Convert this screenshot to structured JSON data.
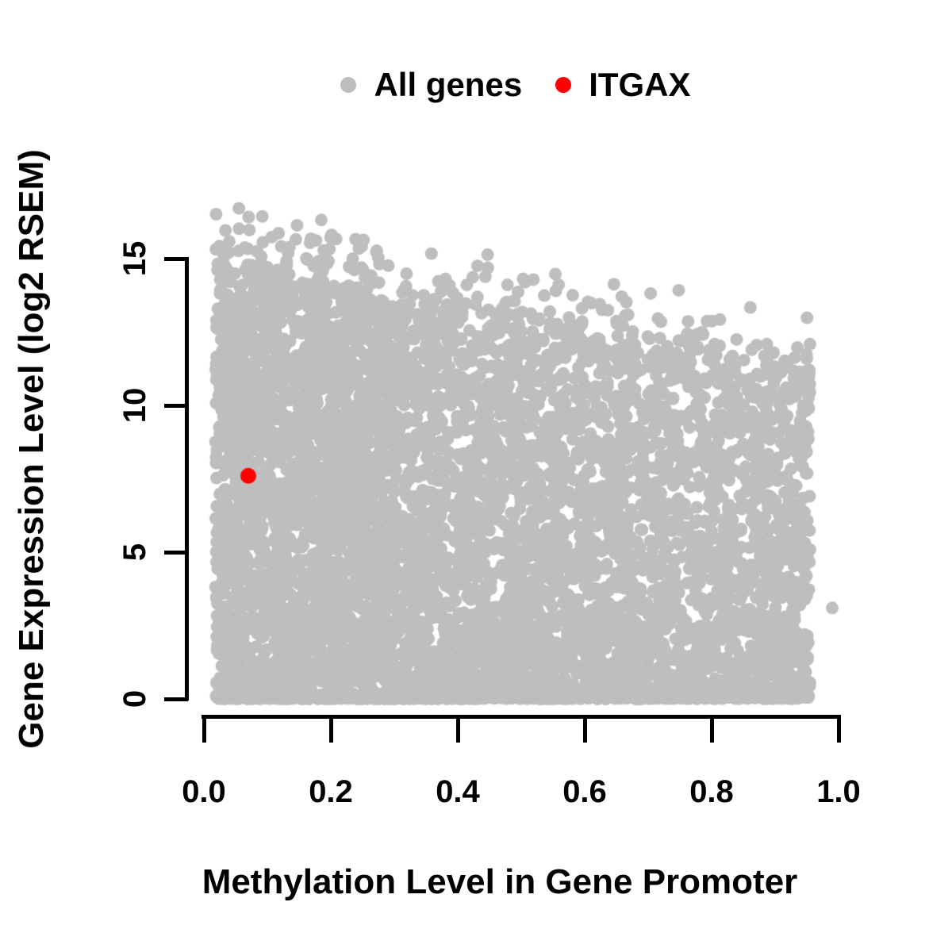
{
  "figure": {
    "background_color": "#ffffff",
    "legend": {
      "items": [
        {
          "label": "All genes",
          "color": "#bebebe",
          "marker": "filled-circle"
        },
        {
          "label": "ITGAX",
          "color": "#ff0000",
          "marker": "filled-circle"
        }
      ]
    },
    "x_axis": {
      "label": "Methylation Level in Gene Promoter",
      "tick_labels": [
        "0.0",
        "0.2",
        "0.4",
        "0.6",
        "0.8",
        "1.0"
      ]
    },
    "y_axis": {
      "label": "Gene Expression Level (log2 RSEM)",
      "tick_labels": [
        "0",
        "5",
        "10",
        "15"
      ]
    }
  },
  "chart_data": {
    "type": "scatter",
    "title": "",
    "xlabel": "Methylation Level in Gene Promoter",
    "ylabel": "Gene Expression Level (log2 RSEM)",
    "xlim": [
      0,
      1
    ],
    "ylim": [
      0,
      17
    ],
    "x_ticks": [
      0.0,
      0.2,
      0.4,
      0.6,
      0.8,
      1.0
    ],
    "y_ticks": [
      0,
      5,
      10,
      15
    ],
    "grid": false,
    "legend_position": "top-center",
    "series": [
      {
        "name": "All genes",
        "color": "#bebebe",
        "marker": "filled-circle",
        "marker_radius_px": 8,
        "kind": "dense-cloud",
        "n_points": 7200,
        "seed": 42,
        "x_range": [
          0.018,
          0.955
        ],
        "upper_bound": {
          "at_x0": 14.6,
          "slope": -3.5,
          "jitter_sd": 0.35
        },
        "above_bound_fraction": 0.035,
        "above_bound_extra_max": 2.2,
        "max_y": 16.9,
        "zero_expression_fraction": 0.12,
        "top_skew_with_x": 0.45,
        "isolated_points": [
          [
            0.99,
            3.1
          ]
        ]
      },
      {
        "name": "ITGAX",
        "color": "#ff0000",
        "marker": "filled-circle",
        "marker_radius_px": 10,
        "points": [
          [
            0.07,
            7.6
          ]
        ]
      }
    ]
  }
}
